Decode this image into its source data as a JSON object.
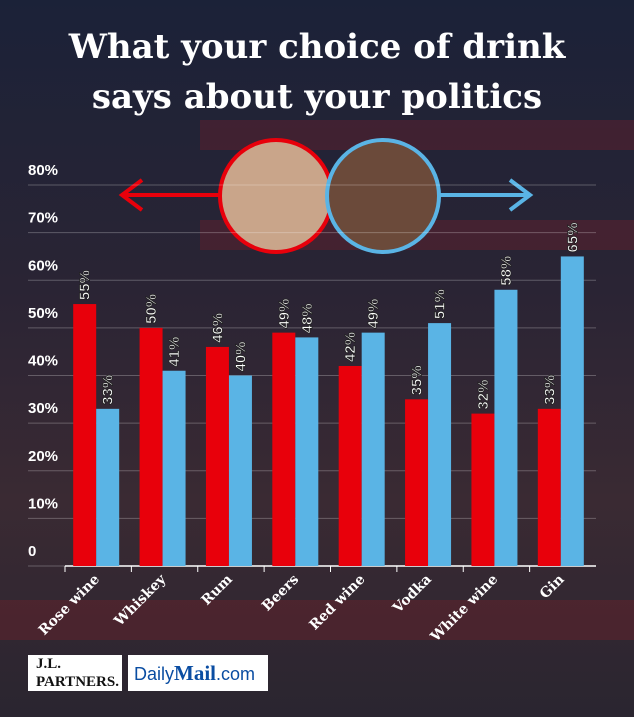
{
  "chart_data": {
    "type": "bar",
    "title": "What your choice of drink says about your politics",
    "categories": [
      "Rose wine",
      "Whiskey",
      "Rum",
      "Beers",
      "Red wine",
      "Vodka",
      "White wine",
      "Gin"
    ],
    "series": [
      {
        "color": "#e8000b",
        "values": [
          55,
          50,
          46,
          49,
          42,
          35,
          32,
          33
        ],
        "value_labels": [
          "55%",
          "50%",
          "46%",
          "49%",
          "42%",
          "35%",
          "32%",
          "33%"
        ]
      },
      {
        "color": "#5ab4e5",
        "values": [
          33,
          41,
          40,
          48,
          49,
          51,
          58,
          65
        ],
        "value_labels": [
          "33%",
          "41%",
          "40%",
          "48%",
          "49%",
          "51%",
          "58%",
          "65%"
        ]
      }
    ],
    "ylim": [
      0,
      80
    ],
    "yticks": [
      0,
      {
        "value": 10,
        "label": "10%"
      },
      {
        "value": 20,
        "label": "20%"
      },
      {
        "value": 30,
        "label": "30%"
      },
      {
        "value": 40,
        "label": "40%"
      },
      {
        "value": 50,
        "label": "50%"
      },
      {
        "value": 60,
        "label": "60%"
      },
      {
        "value": 70,
        "label": "70%"
      },
      {
        "value": 80,
        "label": "80%"
      }
    ],
    "grid": true
  },
  "footer": {
    "logo_1": [
      "J.L.",
      "PARTNERS."
    ],
    "logo_2": [
      "Daily",
      "Mail",
      ".com"
    ]
  }
}
